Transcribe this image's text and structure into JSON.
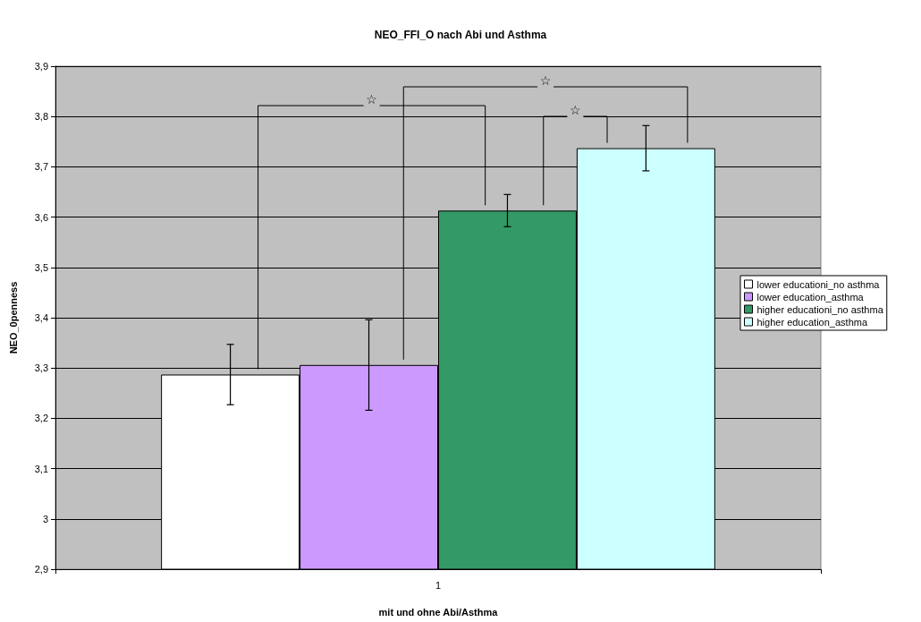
{
  "chart_data": {
    "type": "bar",
    "title": "NEO_FFI_O nach Abi und Asthma",
    "xlabel": "mit und ohne Abi/Asthma",
    "ylabel": "NEO_0penness",
    "categories": [
      "1"
    ],
    "series": [
      {
        "name": "lower educationi_no asthma",
        "color": "#ffffff",
        "values": [
          3.287
        ],
        "errors": [
          0.06
        ]
      },
      {
        "name": "lower education_asthma",
        "color": "#cc99ff",
        "values": [
          3.306
        ],
        "errors": [
          0.09
        ]
      },
      {
        "name": "higher educationi_no asthma",
        "color": "#339966",
        "values": [
          3.613
        ],
        "errors": [
          0.032
        ]
      },
      {
        "name": "higher education_asthma",
        "color": "#ccffff",
        "values": [
          3.737
        ],
        "errors": [
          0.045
        ]
      }
    ],
    "ylim": [
      2.9,
      3.9
    ],
    "yticks": [
      {
        "value": 2.9,
        "label": "2,9"
      },
      {
        "value": 3,
        "label": "3"
      },
      {
        "value": 3.1,
        "label": "3,1"
      },
      {
        "value": 3.2,
        "label": "3,2"
      },
      {
        "value": 3.3,
        "label": "3,3"
      },
      {
        "value": 3.4,
        "label": "3,4"
      },
      {
        "value": 3.5,
        "label": "3,5"
      },
      {
        "value": 3.6,
        "label": "3,6"
      },
      {
        "value": 3.7,
        "label": "3,7"
      },
      {
        "value": 3.8,
        "label": "3,8"
      },
      {
        "value": 3.9,
        "label": "3,9"
      }
    ],
    "annotations": [
      "☆",
      "☆",
      "☆"
    ],
    "grid": "y",
    "legend": "right"
  }
}
